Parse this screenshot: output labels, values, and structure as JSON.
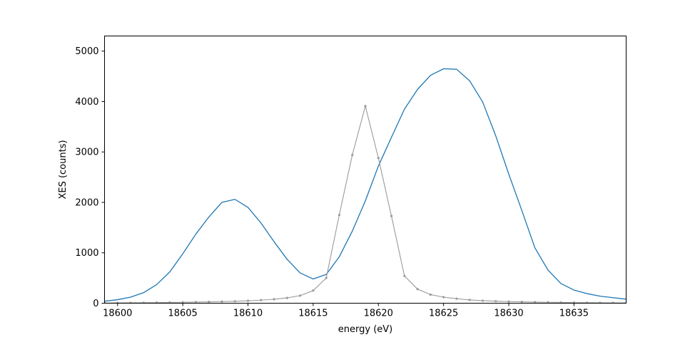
{
  "chart_data": {
    "type": "line",
    "title": "",
    "xlabel": "energy (eV)",
    "ylabel": "XES (counts)",
    "xlim": [
      18599,
      18639
    ],
    "ylim": [
      0,
      5300
    ],
    "xticks": [
      18600,
      18605,
      18610,
      18615,
      18620,
      18625,
      18630,
      18635
    ],
    "yticks": [
      0,
      1000,
      2000,
      3000,
      4000,
      5000
    ],
    "grid": false,
    "legend": "none",
    "series": [
      {
        "color": "#1f77b4",
        "markers": false,
        "x": [
          18599,
          18600,
          18601,
          18602,
          18603,
          18604,
          18605,
          18606,
          18607,
          18608,
          18609,
          18610,
          18611,
          18612,
          18613,
          18614,
          18615,
          18616,
          18617,
          18618,
          18619,
          18620,
          18621,
          18622,
          18623,
          18624,
          18625,
          18626,
          18627,
          18628,
          18629,
          18630,
          18631,
          18632,
          18633,
          18634,
          18635,
          18636,
          18637,
          18638,
          18639
        ],
        "y": [
          40,
          70,
          120,
          210,
          370,
          620,
          980,
          1370,
          1710,
          2000,
          2060,
          1900,
          1590,
          1220,
          870,
          600,
          480,
          570,
          920,
          1430,
          2030,
          2720,
          3290,
          3850,
          4240,
          4520,
          4650,
          4640,
          4410,
          3990,
          3320,
          2560,
          1840,
          1100,
          660,
          390,
          260,
          190,
          140,
          110,
          80
        ]
      },
      {
        "color": "#9a9a9a",
        "markers": true,
        "x": [
          18599,
          18600,
          18601,
          18602,
          18603,
          18604,
          18605,
          18606,
          18607,
          18608,
          18609,
          18610,
          18611,
          18612,
          18613,
          18614,
          18615,
          18616,
          18617,
          18618,
          18619,
          18620,
          18621,
          18622,
          18623,
          18624,
          18625,
          18626,
          18627,
          18628,
          18629,
          18630,
          18631,
          18632,
          18633,
          18634,
          18635,
          18636,
          18637,
          18638,
          18639
        ],
        "y": [
          5,
          6,
          8,
          10,
          12,
          15,
          18,
          22,
          26,
          32,
          38,
          48,
          60,
          78,
          105,
          150,
          250,
          500,
          1750,
          2940,
          3910,
          2880,
          1730,
          540,
          280,
          170,
          120,
          90,
          65,
          50,
          40,
          32,
          27,
          22,
          18,
          15,
          12,
          10,
          8,
          7,
          6
        ]
      }
    ]
  }
}
